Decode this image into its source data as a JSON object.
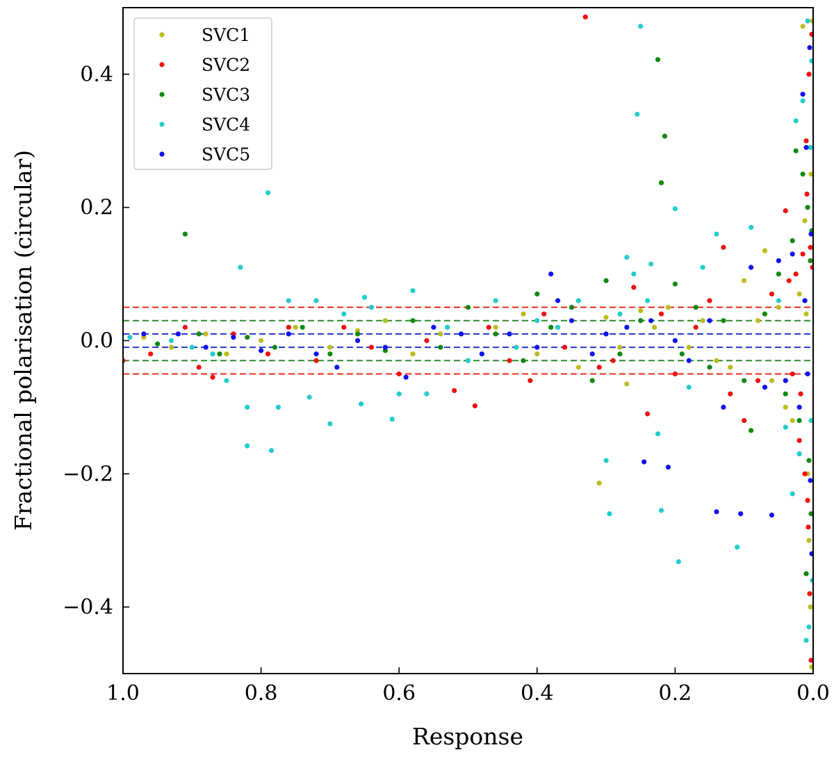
{
  "chart_data": {
    "type": "scatter",
    "xlabel": "Response",
    "ylabel": "Fractional polarisation (circular)",
    "xlim": [
      1.0,
      0.0
    ],
    "ylim": [
      -0.5,
      0.5
    ],
    "x_reversed": true,
    "grid": false,
    "legend_position": "top-left",
    "xticks": [
      {
        "value": 1.0,
        "label": "1.0"
      },
      {
        "value": 0.8,
        "label": "0.8"
      },
      {
        "value": 0.6,
        "label": "0.6"
      },
      {
        "value": 0.4,
        "label": "0.4"
      },
      {
        "value": 0.2,
        "label": "0.2"
      },
      {
        "value": 0.0,
        "label": "0.0"
      }
    ],
    "yticks": [
      {
        "value": 0.4,
        "label": "0.4"
      },
      {
        "value": 0.2,
        "label": "0.2"
      },
      {
        "value": 0.0,
        "label": "0.0"
      },
      {
        "value": -0.2,
        "label": "−0.2"
      },
      {
        "value": -0.4,
        "label": "−0.4"
      }
    ],
    "reference_lines": [
      {
        "y": 0.05,
        "color": "#e8281c"
      },
      {
        "y": -0.05,
        "color": "#e8281c"
      },
      {
        "y": 0.03,
        "color": "#2a8a2a"
      },
      {
        "y": -0.03,
        "color": "#2a8a2a"
      },
      {
        "y": 0.01,
        "color": "#2233cc"
      },
      {
        "y": -0.01,
        "color": "#2233cc"
      }
    ],
    "series": [
      {
        "name": "SVC1",
        "color": "#bcbc1e",
        "points": [
          [
            0.97,
            0.005
          ],
          [
            0.93,
            -0.01
          ],
          [
            0.88,
            0.01
          ],
          [
            0.85,
            -0.02
          ],
          [
            0.8,
            0.0
          ],
          [
            0.75,
            0.02
          ],
          [
            0.7,
            -0.01
          ],
          [
            0.66,
            0.015
          ],
          [
            0.62,
            0.03
          ],
          [
            0.58,
            -0.02
          ],
          [
            0.54,
            0.01
          ],
          [
            0.5,
            -0.03
          ],
          [
            0.46,
            0.02
          ],
          [
            0.42,
            0.04
          ],
          [
            0.4,
            -0.02
          ],
          [
            0.37,
            0.02
          ],
          [
            0.34,
            -0.04
          ],
          [
            0.31,
            -0.214
          ],
          [
            0.3,
            0.035
          ],
          [
            0.28,
            -0.01
          ],
          [
            0.27,
            -0.065
          ],
          [
            0.25,
            0.045
          ],
          [
            0.23,
            0.02
          ],
          [
            0.21,
            0.05
          ],
          [
            0.18,
            -0.01
          ],
          [
            0.16,
            0.03
          ],
          [
            0.14,
            -0.03
          ],
          [
            0.12,
            -0.04
          ],
          [
            0.1,
            0.09
          ],
          [
            0.08,
            0.03
          ],
          [
            0.07,
            0.135
          ],
          [
            0.06,
            -0.06
          ],
          [
            0.05,
            0.05
          ],
          [
            0.04,
            -0.1
          ],
          [
            0.03,
            -0.12
          ],
          [
            0.02,
            0.07
          ],
          [
            0.015,
            0.472
          ],
          [
            0.01,
            0.04
          ],
          [
            0.008,
            -0.2
          ],
          [
            0.006,
            -0.3
          ],
          [
            0.004,
            -0.4
          ],
          [
            0.003,
            0.25
          ],
          [
            0.002,
            -0.49
          ],
          [
            0.001,
            0.48
          ],
          [
            0.012,
            0.18
          ]
        ]
      },
      {
        "name": "SVC2",
        "color": "#ee1111",
        "points": [
          [
            1.0,
            -0.03
          ],
          [
            0.96,
            -0.02
          ],
          [
            0.91,
            0.02
          ],
          [
            0.89,
            -0.04
          ],
          [
            0.87,
            -0.055
          ],
          [
            0.84,
            0.01
          ],
          [
            0.79,
            -0.02
          ],
          [
            0.76,
            0.02
          ],
          [
            0.72,
            -0.03
          ],
          [
            0.68,
            0.02
          ],
          [
            0.64,
            -0.01
          ],
          [
            0.6,
            -0.05
          ],
          [
            0.56,
            0.0
          ],
          [
            0.52,
            -0.075
          ],
          [
            0.49,
            -0.098
          ],
          [
            0.47,
            0.02
          ],
          [
            0.44,
            -0.03
          ],
          [
            0.41,
            -0.06
          ],
          [
            0.39,
            0.04
          ],
          [
            0.36,
            -0.01
          ],
          [
            0.33,
            0.486
          ],
          [
            0.31,
            -0.04
          ],
          [
            0.29,
            -0.03
          ],
          [
            0.26,
            0.08
          ],
          [
            0.24,
            -0.11
          ],
          [
            0.22,
            0.04
          ],
          [
            0.2,
            -0.05
          ],
          [
            0.17,
            0.02
          ],
          [
            0.15,
            0.06
          ],
          [
            0.13,
            0.14
          ],
          [
            0.12,
            -0.08
          ],
          [
            0.1,
            -0.12
          ],
          [
            0.08,
            -0.06
          ],
          [
            0.06,
            0.07
          ],
          [
            0.04,
            0.195
          ],
          [
            0.035,
            0.09
          ],
          [
            0.03,
            -0.05
          ],
          [
            0.025,
            0.1
          ],
          [
            0.02,
            -0.15
          ],
          [
            0.015,
            0.13
          ],
          [
            0.012,
            -0.2
          ],
          [
            0.01,
            0.3
          ],
          [
            0.008,
            -0.24
          ],
          [
            0.006,
            0.4
          ],
          [
            0.005,
            -0.38
          ],
          [
            0.004,
            0.14
          ],
          [
            0.003,
            -0.48
          ],
          [
            0.002,
            0.46
          ],
          [
            0.001,
            0.11
          ],
          [
            0.007,
            -0.28
          ],
          [
            0.018,
            -0.08
          ],
          [
            0.009,
            0.22
          ]
        ]
      },
      {
        "name": "SVC3",
        "color": "#118811",
        "points": [
          [
            0.95,
            -0.005
          ],
          [
            0.91,
            0.16
          ],
          [
            0.89,
            0.01
          ],
          [
            0.86,
            -0.02
          ],
          [
            0.82,
            0.005
          ],
          [
            0.78,
            -0.01
          ],
          [
            0.74,
            0.02
          ],
          [
            0.7,
            -0.02
          ],
          [
            0.66,
            0.01
          ],
          [
            0.62,
            -0.015
          ],
          [
            0.58,
            0.03
          ],
          [
            0.54,
            -0.01
          ],
          [
            0.5,
            0.05
          ],
          [
            0.46,
            0.01
          ],
          [
            0.42,
            -0.03
          ],
          [
            0.4,
            0.07
          ],
          [
            0.38,
            0.02
          ],
          [
            0.35,
            0.05
          ],
          [
            0.32,
            -0.06
          ],
          [
            0.3,
            0.09
          ],
          [
            0.28,
            -0.02
          ],
          [
            0.25,
            0.03
          ],
          [
            0.225,
            0.422
          ],
          [
            0.22,
            0.237
          ],
          [
            0.215,
            0.307
          ],
          [
            0.2,
            0.085
          ],
          [
            0.19,
            -0.02
          ],
          [
            0.17,
            0.05
          ],
          [
            0.15,
            -0.04
          ],
          [
            0.13,
            0.03
          ],
          [
            0.1,
            -0.06
          ],
          [
            0.09,
            -0.135
          ],
          [
            0.07,
            0.04
          ],
          [
            0.05,
            0.1
          ],
          [
            0.04,
            -0.08
          ],
          [
            0.03,
            0.15
          ],
          [
            0.025,
            0.285
          ],
          [
            0.02,
            -0.12
          ],
          [
            0.015,
            0.25
          ],
          [
            0.01,
            -0.35
          ],
          [
            0.008,
            0.2
          ],
          [
            0.006,
            -0.18
          ],
          [
            0.004,
            0.12
          ],
          [
            0.003,
            -0.26
          ],
          [
            0.002,
            0.165
          ],
          [
            0.012,
            0.06
          ]
        ]
      },
      {
        "name": "SVC4",
        "color": "#22cccc",
        "points": [
          [
            0.99,
            0.005
          ],
          [
            0.93,
            0.0
          ],
          [
            0.9,
            -0.01
          ],
          [
            0.87,
            -0.02
          ],
          [
            0.85,
            -0.06
          ],
          [
            0.83,
            0.11
          ],
          [
            0.82,
            -0.1
          ],
          [
            0.82,
            -0.158
          ],
          [
            0.79,
            0.222
          ],
          [
            0.785,
            -0.165
          ],
          [
            0.775,
            -0.1
          ],
          [
            0.76,
            0.06
          ],
          [
            0.73,
            -0.085
          ],
          [
            0.72,
            0.06
          ],
          [
            0.7,
            -0.125
          ],
          [
            0.68,
            0.04
          ],
          [
            0.655,
            -0.095
          ],
          [
            0.65,
            0.065
          ],
          [
            0.64,
            0.05
          ],
          [
            0.61,
            -0.118
          ],
          [
            0.6,
            -0.08
          ],
          [
            0.58,
            0.075
          ],
          [
            0.56,
            -0.08
          ],
          [
            0.53,
            0.02
          ],
          [
            0.5,
            -0.03
          ],
          [
            0.46,
            0.06
          ],
          [
            0.43,
            -0.01
          ],
          [
            0.4,
            0.03
          ],
          [
            0.37,
            0.02
          ],
          [
            0.34,
            0.06
          ],
          [
            0.3,
            -0.18
          ],
          [
            0.295,
            -0.26
          ],
          [
            0.28,
            0.04
          ],
          [
            0.27,
            0.125
          ],
          [
            0.26,
            0.1
          ],
          [
            0.255,
            0.34
          ],
          [
            0.25,
            0.472
          ],
          [
            0.24,
            0.06
          ],
          [
            0.235,
            0.115
          ],
          [
            0.225,
            -0.14
          ],
          [
            0.22,
            -0.255
          ],
          [
            0.2,
            0.198
          ],
          [
            0.195,
            -0.332
          ],
          [
            0.18,
            -0.07
          ],
          [
            0.16,
            0.11
          ],
          [
            0.14,
            0.16
          ],
          [
            0.11,
            -0.31
          ],
          [
            0.09,
            0.17
          ],
          [
            0.07,
            -0.07
          ],
          [
            0.05,
            0.06
          ],
          [
            0.04,
            -0.13
          ],
          [
            0.03,
            -0.23
          ],
          [
            0.025,
            0.33
          ],
          [
            0.02,
            -0.17
          ],
          [
            0.015,
            0.36
          ],
          [
            0.01,
            -0.45
          ],
          [
            0.008,
            0.48
          ],
          [
            0.006,
            -0.43
          ],
          [
            0.004,
            0.29
          ],
          [
            0.003,
            -0.12
          ],
          [
            0.002,
            0.42
          ],
          [
            0.001,
            -0.36
          ]
        ]
      },
      {
        "name": "SVC5",
        "color": "#1111ee",
        "points": [
          [
            0.97,
            0.01
          ],
          [
            0.92,
            0.01
          ],
          [
            0.88,
            -0.01
          ],
          [
            0.84,
            0.005
          ],
          [
            0.8,
            -0.015
          ],
          [
            0.76,
            0.01
          ],
          [
            0.72,
            -0.02
          ],
          [
            0.69,
            -0.04
          ],
          [
            0.66,
            0.0
          ],
          [
            0.62,
            -0.01
          ],
          [
            0.59,
            -0.055
          ],
          [
            0.55,
            0.02
          ],
          [
            0.51,
            0.01
          ],
          [
            0.48,
            -0.02
          ],
          [
            0.44,
            0.01
          ],
          [
            0.4,
            -0.01
          ],
          [
            0.38,
            0.1
          ],
          [
            0.37,
            0.06
          ],
          [
            0.35,
            0.03
          ],
          [
            0.32,
            -0.02
          ],
          [
            0.3,
            0.01
          ],
          [
            0.27,
            0.02
          ],
          [
            0.245,
            -0.182
          ],
          [
            0.235,
            0.03
          ],
          [
            0.21,
            -0.19
          ],
          [
            0.2,
            0.0
          ],
          [
            0.18,
            -0.03
          ],
          [
            0.15,
            0.03
          ],
          [
            0.14,
            -0.257
          ],
          [
            0.13,
            -0.1
          ],
          [
            0.105,
            -0.26
          ],
          [
            0.09,
            0.11
          ],
          [
            0.07,
            -0.07
          ],
          [
            0.06,
            -0.262
          ],
          [
            0.05,
            0.12
          ],
          [
            0.04,
            -0.06
          ],
          [
            0.03,
            0.13
          ],
          [
            0.02,
            -0.1
          ],
          [
            0.015,
            0.37
          ],
          [
            0.01,
            0.29
          ],
          [
            0.008,
            -0.05
          ],
          [
            0.005,
            0.44
          ],
          [
            0.004,
            -0.21
          ],
          [
            0.003,
            0.16
          ],
          [
            0.002,
            -0.32
          ],
          [
            0.012,
            0.06
          ]
        ]
      }
    ]
  }
}
